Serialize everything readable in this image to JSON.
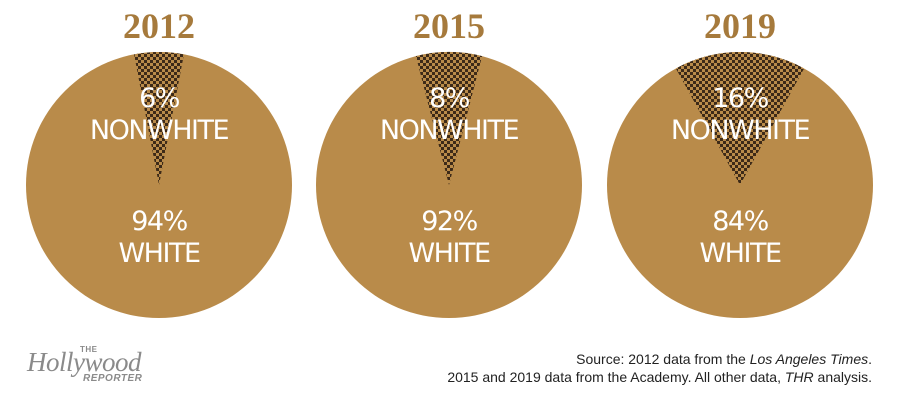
{
  "chart_data": [
    {
      "type": "pie",
      "title": "2012",
      "slices": [
        {
          "label_pct": "6%",
          "label_name": "NONWHITE",
          "value": 6,
          "pattern": "checker"
        },
        {
          "label_pct": "94%",
          "label_name": "WHITE",
          "value": 94,
          "pattern": "solid"
        }
      ]
    },
    {
      "type": "pie",
      "title": "2015",
      "slices": [
        {
          "label_pct": "8%",
          "label_name": "NONWHITE",
          "value": 8,
          "pattern": "checker"
        },
        {
          "label_pct": "92%",
          "label_name": "WHITE",
          "value": 92,
          "pattern": "solid"
        }
      ]
    },
    {
      "type": "pie",
      "title": "2019",
      "slices": [
        {
          "label_pct": "16%",
          "label_name": "NONWHITE",
          "value": 16,
          "pattern": "checker"
        },
        {
          "label_pct": "84%",
          "label_name": "WHITE",
          "value": 84,
          "pattern": "solid"
        }
      ]
    }
  ],
  "colors": {
    "pie": "#b98b4a",
    "title": "#a67a3c",
    "checker_dark": "#3d2a18",
    "label": "#ffffff"
  },
  "logo": {
    "the": "THE",
    "word": "Hollywood",
    "reporter": "REPORTER"
  },
  "source": {
    "line1_prefix": "Source: 2012 data from the ",
    "line1_italic": "Los Angeles Times",
    "line1_suffix": ".",
    "line2_prefix": "2015 and 2019 data from the Academy. All other data, ",
    "line2_italic": "THR",
    "line2_suffix": " analysis."
  }
}
